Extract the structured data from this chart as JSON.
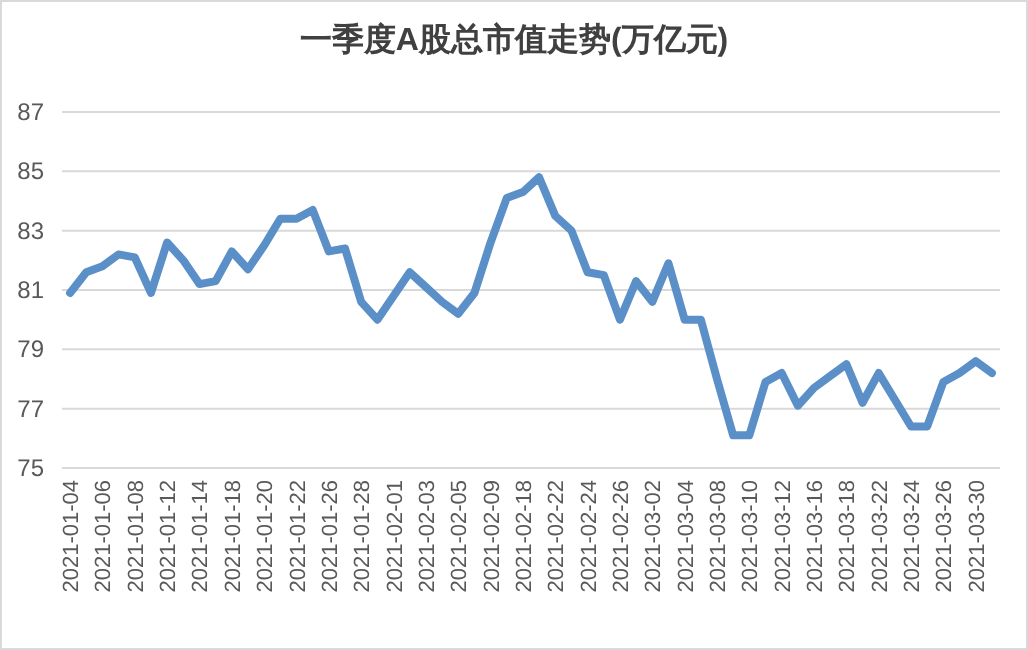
{
  "chart_data": {
    "type": "line",
    "title": "一季度A股总市值走势(万亿元)",
    "categories": [
      "2021-01-04",
      null,
      "2021-01-06",
      null,
      "2021-01-08",
      null,
      "2021-01-12",
      null,
      "2021-01-14",
      null,
      "2021-01-18",
      null,
      "2021-01-20",
      null,
      "2021-01-22",
      null,
      "2021-01-26",
      null,
      "2021-01-28",
      null,
      "2021-02-01",
      null,
      "2021-02-03",
      null,
      "2021-02-05",
      null,
      "2021-02-09",
      null,
      "2021-02-18",
      null,
      "2021-02-22",
      null,
      "2021-02-24",
      null,
      "2021-02-26",
      null,
      "2021-03-02",
      null,
      "2021-03-04",
      null,
      "2021-03-08",
      null,
      "2021-03-10",
      null,
      "2021-03-12",
      null,
      "2021-03-16",
      null,
      "2021-03-18",
      null,
      "2021-03-22",
      null,
      "2021-03-24",
      null,
      "2021-03-26",
      null,
      "2021-03-30",
      null
    ],
    "values": [
      80.9,
      81.6,
      81.8,
      82.2,
      82.1,
      80.9,
      82.6,
      82.0,
      81.2,
      81.3,
      82.3,
      81.7,
      82.5,
      83.4,
      83.4,
      83.7,
      82.3,
      82.4,
      80.6,
      80.0,
      80.8,
      81.6,
      81.1,
      80.6,
      80.2,
      80.9,
      82.6,
      84.1,
      84.3,
      84.8,
      83.5,
      83.0,
      81.6,
      81.5,
      80.0,
      81.3,
      80.6,
      81.9,
      80.0,
      80.0,
      78.0,
      76.1,
      76.1,
      77.9,
      78.2,
      77.1,
      77.7,
      78.1,
      78.5,
      77.2,
      78.2,
      77.3,
      76.4,
      76.4,
      77.9,
      78.2,
      78.6,
      78.2
    ],
    "color": "#5b8fc7",
    "ylim": [
      75,
      87
    ],
    "yticks": [
      75,
      77,
      79,
      81,
      83,
      85,
      87
    ],
    "grid": "y",
    "line_style": "solid"
  }
}
